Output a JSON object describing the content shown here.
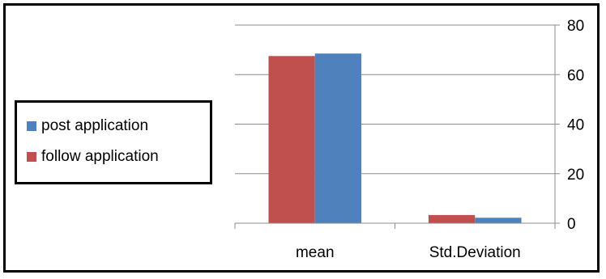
{
  "chart_data": {
    "type": "bar",
    "categories": [
      "mean",
      "Std.Deviation"
    ],
    "series": [
      {
        "name": "follow application",
        "values": [
          67.5,
          3.3
        ],
        "color": "#c0504d"
      },
      {
        "name": "post application",
        "values": [
          68.5,
          2.2
        ],
        "color": "#4f81bd"
      }
    ],
    "ylim": [
      0,
      80
    ],
    "yticks": [
      0,
      20,
      40,
      60,
      80
    ],
    "y_axis_side": "right",
    "grid": true,
    "legend_position": "left",
    "legend_order": [
      "post application",
      "follow application"
    ]
  }
}
